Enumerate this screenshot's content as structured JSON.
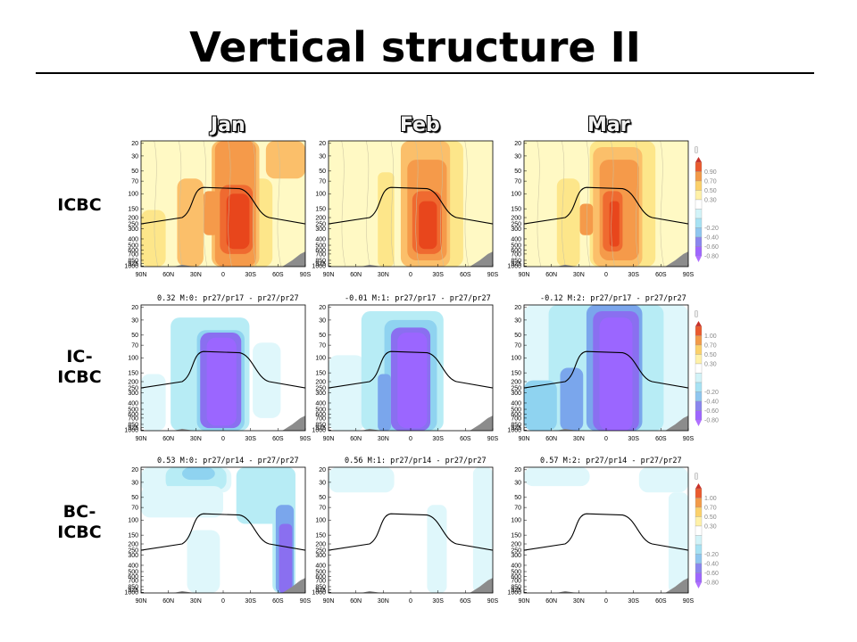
{
  "slide": {
    "title": "Vertical structure II",
    "columns": [
      "Jan",
      "Feb",
      "Mar"
    ],
    "rows": [
      {
        "label_lines": [
          "ICBC"
        ]
      },
      {
        "label_lines": [
          "IC-",
          "ICBC"
        ]
      },
      {
        "label_lines": [
          "BC-",
          "ICBC"
        ]
      }
    ]
  },
  "panel_axes": {
    "y_ticks": [
      "20",
      "30",
      "50",
      "70",
      "100",
      "150",
      "200",
      "250",
      "300",
      "400",
      "500",
      "600",
      "700",
      "850",
      "925",
      "1000"
    ],
    "x_ticks": [
      "90N",
      "60N",
      "30N",
      "0",
      "30S",
      "60S",
      "90S"
    ]
  },
  "panel_titles": [
    [
      "",
      "",
      ""
    ],
    [
      "0.32 M:0: pr27/pr17 - pr27/pr27",
      "-0.01 M:1: pr27/pr17 - pr27/pr27",
      "-0.12 M:2: pr27/pr17 - pr27/pr27"
    ],
    [
      "0.53 M:0: pr27/pr14 - pr27/pr27",
      "0.56 M:1: pr27/pr14 - pr27/pr27",
      "0.57 M:2: pr27/pr14 - pr27/pr27"
    ]
  ],
  "colorbars": [
    {
      "unit": "[]",
      "labels": [
        "0.90",
        "0.70",
        "0.50",
        "0.30",
        "-0.20",
        "-0.40",
        "-0.60",
        "-0.80"
      ]
    },
    {
      "unit": "[]",
      "labels": [
        "1.00",
        "0.70",
        "0.50",
        "0.30",
        "-0.20",
        "-0.40",
        "-0.60",
        "-0.80"
      ]
    },
    {
      "unit": "[]",
      "labels": [
        "1.00",
        "0.70",
        "0.50",
        "0.30",
        "-0.20",
        "-0.40",
        "-0.60",
        "-0.80"
      ]
    }
  ],
  "colors": {
    "warm": [
      "#fff9c4",
      "#fde68a",
      "#fbbf6a",
      "#f59a4a",
      "#ef6a30",
      "#e8461c"
    ],
    "cool": [
      "#dff7fb",
      "#b7ecf5",
      "#8fd3f0",
      "#7aa6ec",
      "#8a6ff0",
      "#9b66ff"
    ],
    "tropopause_line": "#000000",
    "topography": "#8c8c8c"
  }
}
